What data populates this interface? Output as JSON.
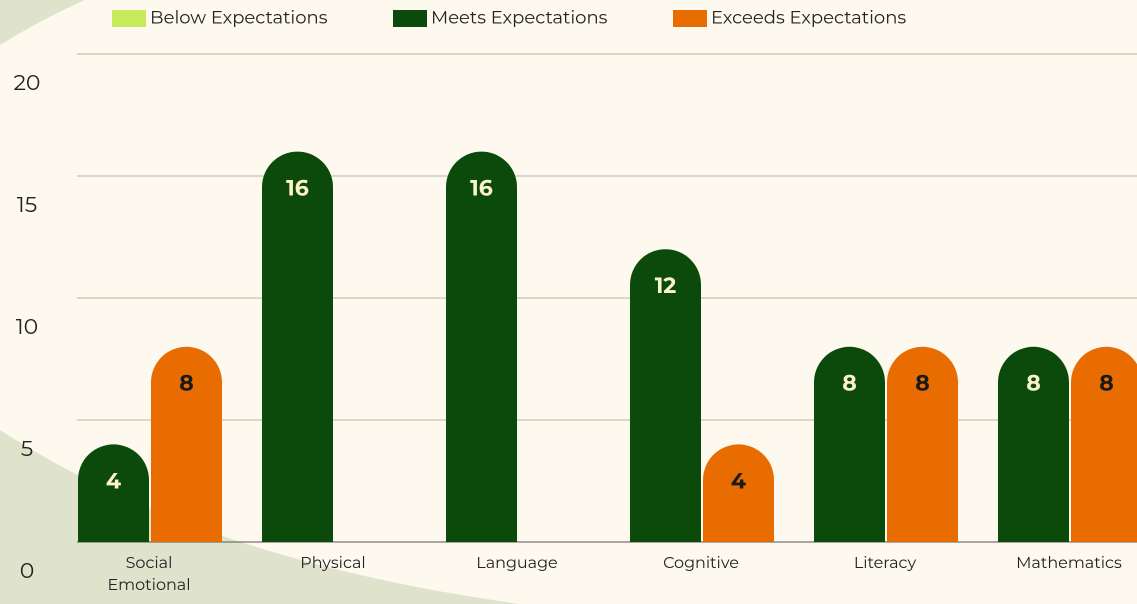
{
  "chart_data": {
    "type": "bar",
    "categories": [
      "Social Emotional",
      "Physical",
      "Language",
      "Cognitive",
      "Literacy",
      "Mathematics"
    ],
    "series": [
      {
        "name": "Below Expectations",
        "color": "#c6ea5c",
        "values": [
          null,
          null,
          null,
          null,
          null,
          null
        ]
      },
      {
        "name": "Meets Expectations",
        "color": "#0b4a0b",
        "values": [
          4,
          16,
          16,
          12,
          8,
          8
        ]
      },
      {
        "name": "Exceeds Expectations",
        "color": "#e96c00",
        "values": [
          8,
          null,
          null,
          4,
          8,
          8
        ]
      }
    ],
    "ylim": [
      0,
      20
    ],
    "yticks": [
      0,
      5,
      10,
      15,
      20
    ],
    "grid": true,
    "legend": "top"
  }
}
